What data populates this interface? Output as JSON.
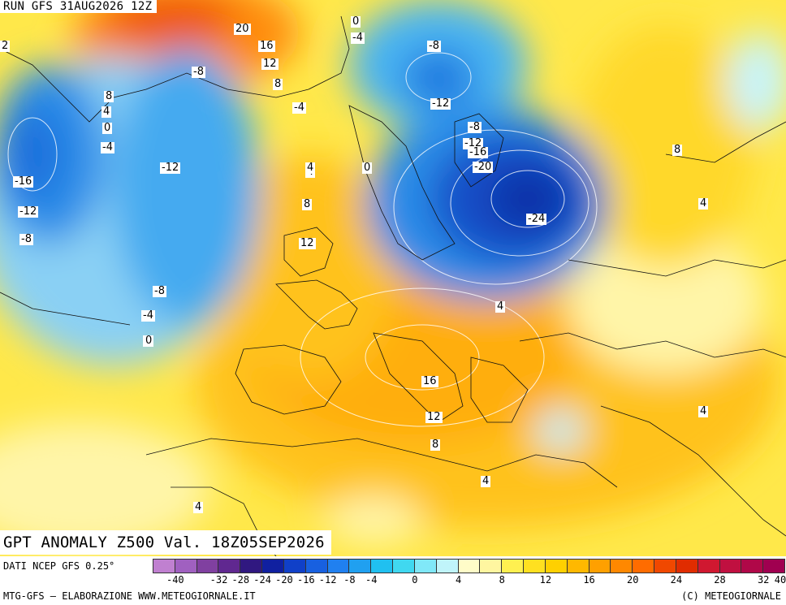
{
  "header": {
    "run_title": "RUN GFS 31AUG2026 12Z"
  },
  "map": {
    "title": "GPT ANOMALY Z500 Val. 18Z05SEP2026",
    "contour_labels": [
      "20",
      "16",
      "12",
      "8",
      "-8",
      "8",
      "4",
      "0",
      "-4",
      "-16",
      "-12",
      "-8",
      "-12",
      "0",
      "-4",
      "2",
      "0",
      "-4",
      "-8",
      "4",
      "-12",
      "-8",
      "-12",
      "-16",
      "-20",
      "-24",
      "0",
      "4",
      "8",
      "12",
      "8",
      "4",
      "16",
      "12",
      "8",
      "4",
      "4",
      "4",
      "4",
      "-8",
      "-4",
      "0"
    ]
  },
  "legend": {
    "source": "DATI NCEP GFS 0.25°",
    "colors": [
      "#c080d0",
      "#a060c0",
      "#8040a0",
      "#602890",
      "#301880",
      "#1020a0",
      "#1040c8",
      "#1860e0",
      "#2080f0",
      "#20a0f0",
      "#20c0f0",
      "#40d8f0",
      "#80e8f8",
      "#c0f4fa",
      "#fffcc8",
      "#fff6a0",
      "#fff050",
      "#ffe020",
      "#ffd000",
      "#ffb800",
      "#ffa000",
      "#ff8800",
      "#ff6c00",
      "#f04800",
      "#e02c00",
      "#d01830",
      "#c01040",
      "#b00848",
      "#a00050"
    ],
    "ticks": [
      "-40",
      "-32",
      "-28",
      "-24",
      "-20",
      "-16",
      "-12",
      "-8",
      "-4",
      "0",
      "4",
      "8",
      "12",
      "16",
      "20",
      "24",
      "28",
      "32",
      "40"
    ]
  },
  "footer": {
    "credit_left": "MTG-GFS — ELABORAZIONE WWW.METEOGIORNALE.IT",
    "credit_right": "(C) METEOGIORNALE"
  }
}
